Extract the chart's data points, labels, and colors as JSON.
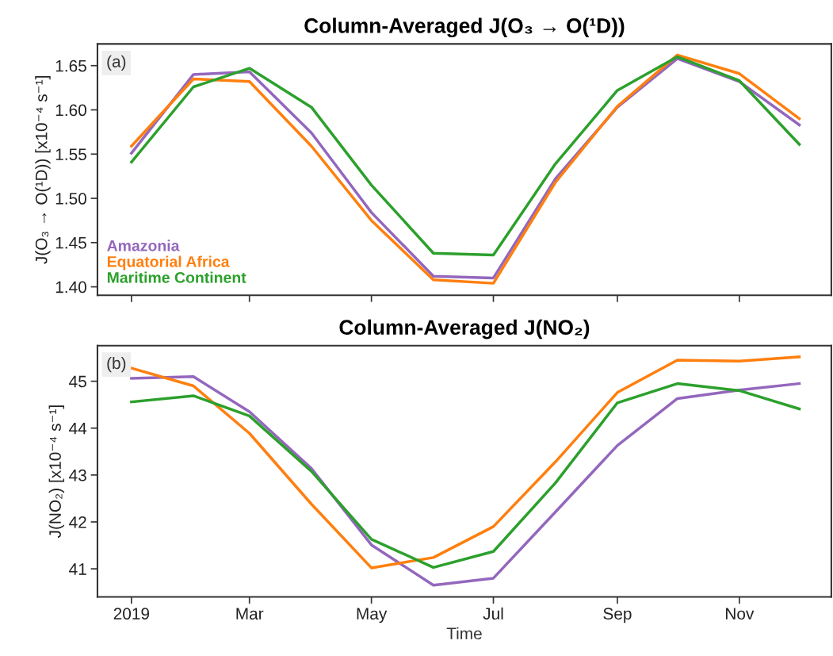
{
  "chart_data": [
    {
      "type": "line",
      "title": "Column-Averaged J(O₃ → O(¹D))",
      "ylabel": "J(O₃ → O(¹D)) [x10⁻⁴ s⁻¹]",
      "x": [
        "2019-01",
        "2019-02",
        "2019-03",
        "2019-04",
        "2019-05",
        "2019-06",
        "2019-07",
        "2019-08",
        "2019-09",
        "2019-10",
        "2019-11",
        "2019-12"
      ],
      "series": [
        {
          "name": "Amazonia",
          "color": "#9467bd",
          "values": [
            1.551,
            1.64,
            1.643,
            1.574,
            1.484,
            1.412,
            1.41,
            1.522,
            1.603,
            1.658,
            1.632,
            1.583
          ]
        },
        {
          "name": "Equatorial Africa",
          "color": "#ff7f0e",
          "values": [
            1.559,
            1.635,
            1.632,
            1.559,
            1.475,
            1.408,
            1.404,
            1.518,
            1.604,
            1.662,
            1.641,
            1.59
          ]
        },
        {
          "name": "Maritime Continent",
          "color": "#2ca02c",
          "values": [
            1.541,
            1.626,
            1.647,
            1.603,
            1.515,
            1.438,
            1.436,
            1.539,
            1.622,
            1.66,
            1.633,
            1.561
          ]
        }
      ],
      "xlim": [
        "2018-12-15",
        "2019-12-17"
      ],
      "xticks": [
        {
          "value": "2019-01-01",
          "label": null
        },
        {
          "value": "2019-03-01",
          "label": null
        },
        {
          "value": "2019-05-01",
          "label": null
        },
        {
          "value": "2019-07-01",
          "label": null
        },
        {
          "value": "2019-09-01",
          "label": null
        },
        {
          "value": "2019-11-01",
          "label": null
        }
      ],
      "ylim": [
        1.3904,
        1.6745
      ],
      "yticks": [
        {
          "value": 1.4,
          "label": "1.40"
        },
        1.45,
        {
          "value": 1.5,
          "label": "1.50"
        },
        1.55,
        {
          "value": 1.6,
          "label": "1.60"
        },
        1.65
      ],
      "tick_labels": "y",
      "annotations": [
        "(a)"
      ],
      "legend": "bottom left",
      "grid": false
    },
    {
      "type": "line",
      "title": "Column-Averaged J(NO₂)",
      "xlabel": "Time",
      "ylabel": "J(NO₂) [x10⁻⁴ s⁻¹]",
      "x": [
        "2019-01",
        "2019-02",
        "2019-03",
        "2019-04",
        "2019-05",
        "2019-06",
        "2019-07",
        "2019-08",
        "2019-09",
        "2019-10",
        "2019-11",
        "2019-12"
      ],
      "series": [
        {
          "color": "#9467bd",
          "values": [
            45.06,
            45.1,
            44.35,
            43.14,
            41.51,
            40.65,
            40.8,
            42.21,
            43.63,
            44.63,
            44.81,
            44.95
          ]
        },
        {
          "color": "#ff7f0e",
          "values": [
            45.28,
            44.9,
            43.89,
            42.38,
            41.02,
            41.24,
            41.9,
            43.28,
            44.76,
            45.45,
            45.43,
            45.52
          ]
        },
        {
          "color": "#2ca02c",
          "values": [
            44.56,
            44.69,
            44.26,
            43.08,
            41.63,
            41.03,
            41.37,
            42.83,
            44.54,
            44.95,
            44.8,
            44.41
          ]
        }
      ],
      "xlim": [
        "2018-12-15",
        "2019-12-17"
      ],
      "xticks": [
        {
          "value": "2019-01-01",
          "label": "2019"
        },
        {
          "value": "2019-03-01",
          "label": "Mar"
        },
        {
          "value": "2019-05-01",
          "label": "May"
        },
        {
          "value": "2019-07-01",
          "label": "Jul"
        },
        {
          "value": "2019-09-01",
          "label": "Sep"
        },
        {
          "value": "2019-11-01",
          "label": "Nov"
        }
      ],
      "ylim": [
        40.4,
        45.76
      ],
      "yticks": [
        41,
        42,
        43,
        44,
        45
      ],
      "annotations": [
        "(b)"
      ],
      "grid": false
    }
  ]
}
